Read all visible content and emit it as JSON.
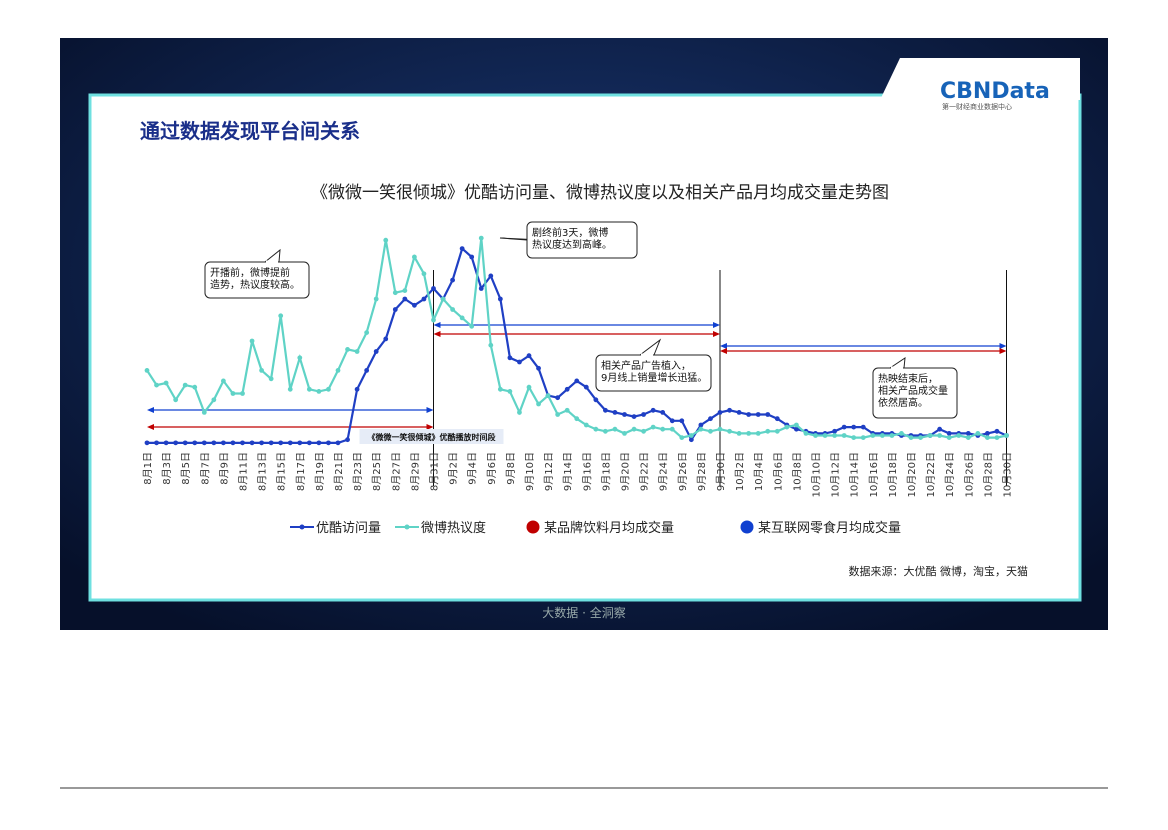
{
  "header": {
    "logo": "CBNData",
    "logo_sub": "第一财经商业数据中心",
    "title": "通过数据发现平台间关系",
    "footer": "大数据 · 全洞察"
  },
  "chart_data": {
    "type": "line",
    "title": "《微微一笑很倾城》优酷访问量、微博热议度以及相关产品月均成交量走势图",
    "categories": [
      "8月1日",
      null,
      "8月3日",
      null,
      "8月5日",
      null,
      "8月7日",
      null,
      "8月9日",
      null,
      "8月11日",
      null,
      "8月13日",
      null,
      "8月15日",
      null,
      "8月17日",
      null,
      "8月19日",
      null,
      "8月21日",
      null,
      "8月23日",
      null,
      "8月25日",
      null,
      "8月27日",
      null,
      "8月29日",
      null,
      "8月31日",
      null,
      "9月2日",
      null,
      "9月4日",
      null,
      "9月6日",
      null,
      "9月8日",
      null,
      "9月10日",
      null,
      "9月12日",
      null,
      "9月14日",
      null,
      "9月16日",
      null,
      "9月18日",
      null,
      "9月20日",
      null,
      "9月22日",
      null,
      "9月24日",
      null,
      "9月26日",
      null,
      "9月28日",
      null,
      "9月30日",
      null,
      "10月2日",
      null,
      "10月4日",
      null,
      "10月6日",
      null,
      "10月8日",
      null,
      "10月10日",
      null,
      "10月12日",
      null,
      "10月14日",
      null,
      "10月16日",
      null,
      "10月18日",
      null,
      "10月20日",
      null,
      "10月22日",
      null,
      "10月24日",
      null,
      "10月26日",
      null,
      "10月28日",
      null,
      "10月30日"
    ],
    "series": [
      {
        "name": "优酷访问量",
        "color": "#1f3fc4",
        "values": [
          1.5,
          1.5,
          1.5,
          1.5,
          1.5,
          1.5,
          1.5,
          1.5,
          1.5,
          1.5,
          1.5,
          1.5,
          1.5,
          1.5,
          1.5,
          1.5,
          1.5,
          1.5,
          1.5,
          1.5,
          1.5,
          3,
          27,
          36,
          45,
          51,
          65,
          70,
          67,
          70,
          75,
          70,
          79,
          94,
          90,
          75,
          81,
          70,
          42,
          40,
          43,
          37,
          24,
          23,
          27,
          31,
          28,
          22,
          17,
          16,
          15,
          14,
          15,
          17,
          16,
          12,
          12,
          3,
          10,
          13,
          16,
          17,
          16,
          15,
          15,
          15,
          13,
          10,
          8,
          7,
          6,
          6,
          7,
          9,
          9,
          9,
          6,
          6,
          6,
          5,
          5,
          5,
          5,
          8,
          6,
          6,
          6,
          5,
          6,
          7,
          5
        ]
      },
      {
        "name": "微博热议度",
        "color": "#5fd3c6",
        "values": [
          36,
          29,
          30,
          22,
          29,
          28,
          16,
          22,
          31,
          25,
          25,
          50,
          36,
          32,
          62,
          27,
          42,
          27,
          26,
          27,
          36,
          46,
          45,
          54,
          70,
          98,
          73,
          74,
          90,
          82,
          60,
          70,
          65,
          61,
          57,
          99,
          48,
          27,
          26,
          16,
          28,
          20,
          24,
          15,
          17,
          13,
          10,
          8,
          7,
          8,
          6,
          8,
          7,
          9,
          8,
          8,
          4,
          5,
          8,
          7,
          8,
          7,
          6,
          6,
          6,
          7,
          7,
          9,
          10,
          6,
          5,
          5,
          5,
          5,
          4,
          4,
          5,
          5,
          5,
          6,
          4,
          4,
          5,
          5,
          4,
          5,
          4,
          6,
          4,
          4,
          5
        ]
      }
    ],
    "ylim": [
      0,
      100
    ],
    "period_legend": [
      {
        "name": "某品牌饮料月均成交量",
        "color": "#c00000"
      },
      {
        "name": "某互联网零食月均成交量",
        "color": "#1040d0"
      }
    ],
    "period_label": "《微微一笑很倾城》优酷播放时间段",
    "annotations": [
      {
        "lines": [
          "开播前，微博提前",
          "造势，热议度较高。"
        ]
      },
      {
        "lines": [
          "剧终前3天，微博",
          "热议度达到高峰。"
        ]
      },
      {
        "lines": [
          "相关产品广告植入，",
          "9月线上销量增长迅猛。"
        ]
      },
      {
        "lines": [
          "热映结束后，",
          "相关产品成交量",
          "依然居高。"
        ]
      }
    ],
    "source": "数据来源：大优酷 微博，淘宝，天猫"
  }
}
